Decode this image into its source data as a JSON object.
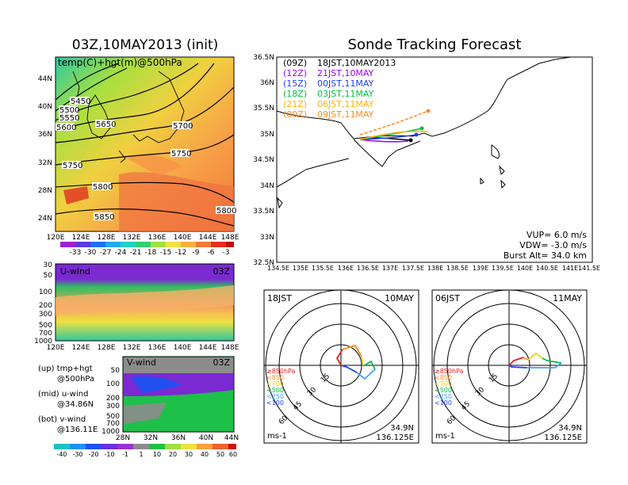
{
  "left_title": "03Z,10MAY2013 (init)",
  "right_title": "Sonde Tracking Forecast",
  "colors": {
    "purple": "#9a00ff",
    "black": "#000000",
    "blue": "#1f3cff",
    "green": "#00bf40",
    "orange": "#ff8a1f",
    "dark_orange": "#e07a20",
    "light_blue": "#3fa0ff",
    "yellow_green": "#b8e000"
  },
  "map_panel": {
    "label": "temp(C)+hgt(m)@500hPa",
    "lat_ticks": [
      "44N",
      "40N",
      "36N",
      "32N",
      "28N",
      "24N"
    ],
    "lon_ticks": [
      "120E",
      "124E",
      "128E",
      "132E",
      "136E",
      "140E",
      "144E",
      "148E"
    ],
    "contour_labels": [
      "5450",
      "5500",
      "5550",
      "5600",
      "5650",
      "5700",
      "5750",
      "5750",
      "5800",
      "5800",
      "5850"
    ],
    "colorbar_labels": [
      "-33",
      "-30",
      "-27",
      "-24",
      "-21",
      "-18",
      "-15",
      "-12",
      "-9",
      "-6",
      "-3"
    ]
  },
  "u_panel": {
    "label": "U-wind",
    "time": "03Z",
    "y_ticks": [
      "30",
      "50",
      "100",
      "200",
      "300",
      "500",
      "700",
      "1000"
    ],
    "x_ticks": [
      "120E",
      "124E",
      "128E",
      "132E",
      "136E",
      "140E",
      "144E",
      "148E"
    ]
  },
  "v_panel": {
    "label": "V-wind",
    "time": "03Z",
    "y_ticks": [
      "50",
      "100",
      "200",
      "300",
      "500",
      "700",
      "1000"
    ],
    "x_ticks": [
      "28N",
      "32N",
      "36N",
      "40N",
      "44N"
    ]
  },
  "legend_notes": [
    {
      "head": "(up) tmp+hgt",
      "sub": "@500hPa"
    },
    {
      "head": "(mid) u-wind",
      "sub": "@34.86N"
    },
    {
      "head": "(bot) v-wind",
      "sub": "@136.11E"
    }
  ],
  "bottom_colorbar_labels": [
    "-40",
    "-30",
    "-20",
    "-10",
    "-1",
    "1",
    "10",
    "20",
    "30",
    "40",
    "50",
    "60"
  ],
  "track_map": {
    "lat_ticks": [
      "36.5N",
      "36N",
      "35.5N",
      "35N",
      "34.5N",
      "34N",
      "33.5N",
      "33N",
      "32.5N"
    ],
    "lon_ticks": [
      "134.5E",
      "135E",
      "135.5E",
      "136E",
      "136.5E",
      "137E",
      "137.5E",
      "138E",
      "138.5E",
      "139E",
      "139.5E",
      "140E",
      "140.5E",
      "141E",
      "141.5E"
    ],
    "legend": [
      {
        "code": "(09Z)",
        "time": "18JST,10MAY2013",
        "color": "#000000"
      },
      {
        "code": "(12Z)",
        "time": "21JST,10MAY",
        "color": "#9a00ff"
      },
      {
        "code": "(15Z)",
        "time": "00JST,11MAY",
        "color": "#1f3cff"
      },
      {
        "code": "(18Z)",
        "time": "03JST,11MAY",
        "color": "#00bf40"
      },
      {
        "code": "(21Z)",
        "time": "06JST,11MAY",
        "color": "#ffb000"
      },
      {
        "code": "(00Z)",
        "time": "09JST,11MAY",
        "color": "#ff8a1f"
      }
    ],
    "info": [
      "VUP= 6.0 m/s",
      "VDW= -3.0 m/s",
      "Burst Alt= 34.0 km"
    ]
  },
  "hodo_left": {
    "time": "18JST",
    "date": "10MAY",
    "ring_labels": [
      "15",
      "30",
      "45",
      "60"
    ],
    "unit": "ms-1",
    "loc_lat": "34.9N",
    "loc_lon": "136.125E",
    "levels": [
      "≥850hPa",
      "<850",
      "<700",
      "<500",
      "<250",
      "<100"
    ]
  },
  "hodo_right": {
    "time": "06JST",
    "date": "11MAY",
    "ring_labels": [
      "15",
      "30",
      "45",
      "60"
    ],
    "unit": "ms-1",
    "loc_lat": "34.9N",
    "loc_lon": "136.125E",
    "levels": [
      "≥850hPa",
      "<850",
      "<700",
      "<500",
      "<250",
      "<100"
    ]
  }
}
